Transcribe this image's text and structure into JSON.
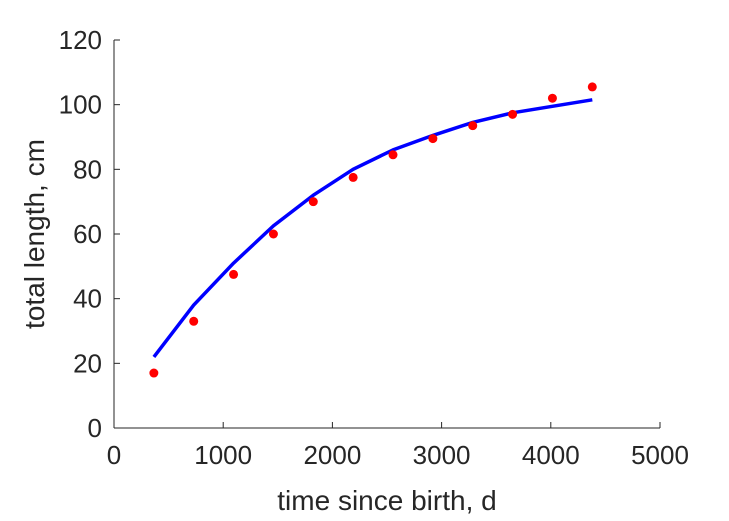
{
  "chart_data": {
    "type": "scatter",
    "xlabel": "time since birth, d",
    "ylabel": "total length, cm",
    "xlim": [
      0,
      5000
    ],
    "ylim": [
      0,
      120
    ],
    "xticks": [
      0,
      1000,
      2000,
      3000,
      4000,
      5000
    ],
    "yticks": [
      0,
      20,
      40,
      60,
      80,
      100,
      120
    ],
    "xtick_labels": [
      "0",
      "1000",
      "2000",
      "3000",
      "4000",
      "5000"
    ],
    "ytick_labels": [
      "0",
      "20",
      "40",
      "60",
      "80",
      "100",
      "120"
    ],
    "grid": false,
    "box": false,
    "series": [
      {
        "kind": "points",
        "color": "#ff0000",
        "x": [
          365,
          730,
          1095,
          1460,
          1825,
          2190,
          2555,
          2920,
          3285,
          3650,
          4015,
          4380
        ],
        "y": [
          17,
          33,
          47.5,
          60,
          70,
          77.5,
          84.5,
          89.5,
          93.5,
          97,
          102,
          105.5
        ]
      },
      {
        "kind": "line",
        "color": "#0000ff",
        "x": [
          365,
          730,
          1095,
          1460,
          1825,
          2190,
          2555,
          2920,
          3285,
          3650,
          4015,
          4380
        ],
        "y": [
          22,
          38,
          51,
          62.5,
          72,
          80,
          86,
          90.5,
          94.5,
          97.5,
          99.5,
          101.5
        ]
      }
    ]
  }
}
